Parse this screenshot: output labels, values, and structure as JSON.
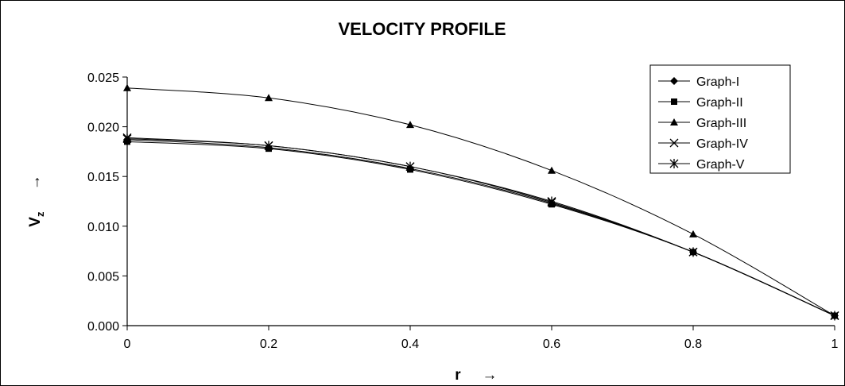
{
  "chart_data": {
    "type": "line",
    "title": "VELOCITY PROFILE",
    "xlabel": "r",
    "xlabel_arrow": "→",
    "ylabel_main": "V",
    "ylabel_sub": "z",
    "ylabel_arrow": "→",
    "xlim": [
      0,
      1
    ],
    "ylim": [
      0,
      0.025
    ],
    "x_ticks": [
      "0",
      "0.2",
      "0.4",
      "0.6",
      "0.8",
      "1"
    ],
    "y_ticks": [
      "0.000",
      "0.005",
      "0.010",
      "0.015",
      "0.020",
      "0.025"
    ],
    "grid": false,
    "legend_position": "top-right",
    "x": [
      0,
      0.2,
      0.4,
      0.6,
      0.8,
      1
    ],
    "series": [
      {
        "name": "Graph-I",
        "marker": "diamond",
        "values": [
          0.0187,
          0.0179,
          0.0158,
          0.0123,
          0.0074,
          0.001
        ]
      },
      {
        "name": "Graph-II",
        "marker": "square",
        "values": [
          0.0185,
          0.0178,
          0.0157,
          0.0122,
          0.0074,
          0.001
        ]
      },
      {
        "name": "Graph-III",
        "marker": "triangle",
        "values": [
          0.0239,
          0.0229,
          0.0202,
          0.0156,
          0.0092,
          0.001
        ]
      },
      {
        "name": "Graph-IV",
        "marker": "x",
        "values": [
          0.0189,
          0.0181,
          0.016,
          0.0124,
          0.0074,
          0.001
        ]
      },
      {
        "name": "Graph-V",
        "marker": "star",
        "values": [
          0.0188,
          0.0181,
          0.016,
          0.0125,
          0.0074,
          0.001
        ]
      }
    ]
  }
}
